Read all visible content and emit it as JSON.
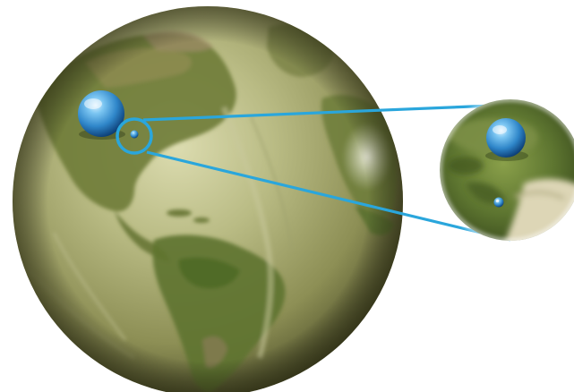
{
  "image": {
    "subject": "globe-with-water-spheres",
    "background_color": "#ffffff",
    "highlight_line_color": "#2aa6dc",
    "land_color": "#6f7e3c",
    "ocean_relief_color": "#a9ad78",
    "water_sphere_color": "#3fa3e0",
    "icons": [
      "earth-globe-icon",
      "large-water-sphere-icon",
      "small-water-sphere-icon",
      "magnifier-circle-icon",
      "zoom-inset-icon"
    ]
  }
}
